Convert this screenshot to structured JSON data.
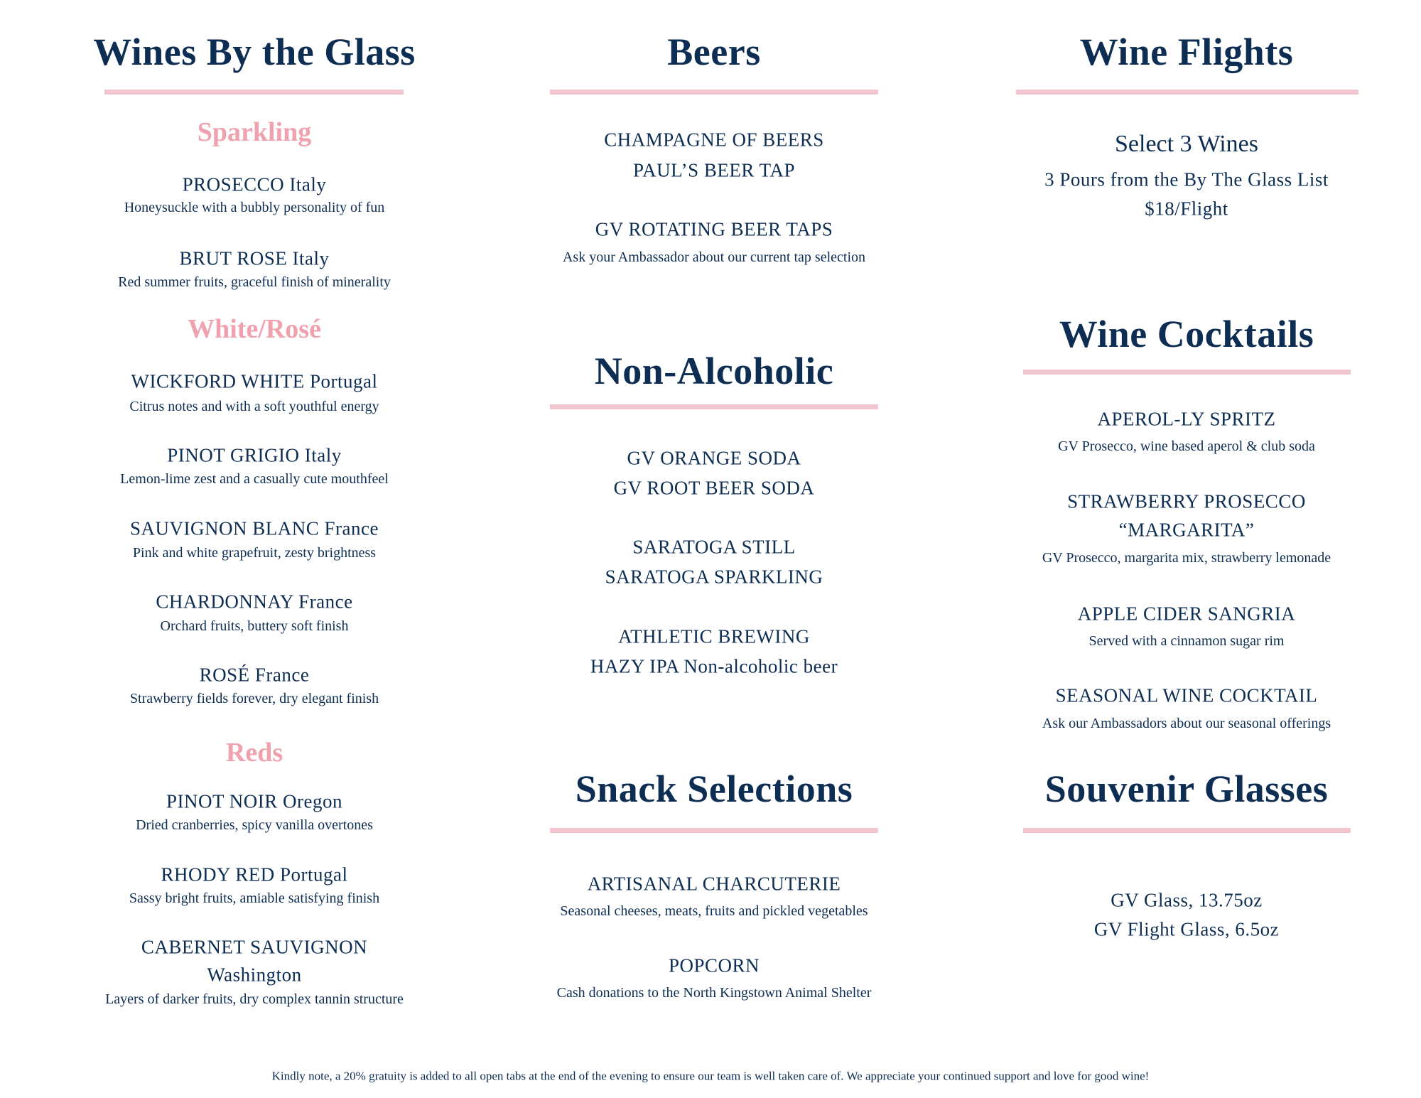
{
  "colors": {
    "text": "#0d2d52",
    "accent": "#f0a1ae",
    "rule": "#f3c6cf"
  },
  "wines": {
    "title": "Wines By the Glass",
    "sparkling": {
      "heading": "Sparkling",
      "items": [
        {
          "name": "PROSECCO Italy",
          "desc": "Honeysuckle with a bubbly personality of fun"
        },
        {
          "name": "BRUT ROSE Italy",
          "desc": "Red summer fruits, graceful finish of minerality"
        }
      ]
    },
    "white": {
      "heading": "White/Rosé",
      "items": [
        {
          "name": "WICKFORD WHITE Portugal",
          "desc": "Citrus notes and with a soft youthful energy"
        },
        {
          "name": "PINOT GRIGIO Italy",
          "desc": "Lemon-lime zest and a casually cute mouthfeel"
        },
        {
          "name": "SAUVIGNON BLANC France",
          "desc": "Pink and white grapefruit, zesty brightness"
        },
        {
          "name": "CHARDONNAY France",
          "desc": "Orchard fruits, buttery soft finish"
        },
        {
          "name": "ROSÉ France",
          "desc": "Strawberry fields forever, dry elegant finish"
        }
      ]
    },
    "reds": {
      "heading": "Reds",
      "items": [
        {
          "name": "PINOT NOIR Oregon",
          "desc": "Dried cranberries, spicy vanilla overtones"
        },
        {
          "name": "RHODY RED Portugal",
          "desc": "Sassy bright fruits, amiable satisfying finish"
        },
        {
          "name": "CABERNET SAUVIGNON",
          "name2": "Washington",
          "desc": "Layers of darker fruits, dry complex tannin structure"
        }
      ]
    }
  },
  "beers": {
    "title": "Beers",
    "lines": [
      "CHAMPAGNE OF BEERS",
      "PAUL’S BEER TAP",
      "GV ROTATING BEER TAPS"
    ],
    "desc": "Ask your Ambassador about our current tap selection"
  },
  "non_alcoholic": {
    "title": "Non-Alcoholic",
    "lines": [
      "GV ORANGE SODA",
      "GV ROOT BEER SODA",
      "SARATOGA STILL",
      "SARATOGA SPARKLING",
      "ATHLETIC BREWING",
      "HAZY IPA Non-alcoholic beer"
    ]
  },
  "snacks": {
    "title": "Snack Selections",
    "items": [
      {
        "name": "ARTISANAL CHARCUTERIE",
        "desc": "Seasonal cheeses, meats, fruits and pickled vegetables"
      },
      {
        "name": "POPCORN",
        "desc": "Cash donations to the North Kingstown Animal Shelter"
      }
    ]
  },
  "flights": {
    "title": "Wine Flights",
    "headline": "Select 3 Wines",
    "line1": "3 Pours from the By The Glass List",
    "price": "$18/Flight"
  },
  "cocktails": {
    "title": "Wine Cocktails",
    "items": [
      {
        "name": "APEROL-LY SPRITZ",
        "desc": "GV Prosecco, wine based aperol & club soda"
      },
      {
        "name": "STRAWBERRY PROSECCO",
        "name2": "“MARGARITA”",
        "desc": "GV Prosecco, margarita mix, strawberry lemonade"
      },
      {
        "name": "APPLE CIDER SANGRIA",
        "desc": "Served with a cinnamon sugar rim"
      },
      {
        "name": "SEASONAL WINE COCKTAIL",
        "desc": "Ask our Ambassadors about our seasonal offerings"
      }
    ]
  },
  "souvenir": {
    "title": "Souvenir Glasses",
    "lines": [
      "GV Glass, 13.75oz",
      "GV Flight Glass, 6.5oz"
    ]
  },
  "footer": "Kindly note, a 20% gratuity is added to all open tabs at the end of the evening to ensure our team is well taken care of. We appreciate your continued support and love for good wine!"
}
